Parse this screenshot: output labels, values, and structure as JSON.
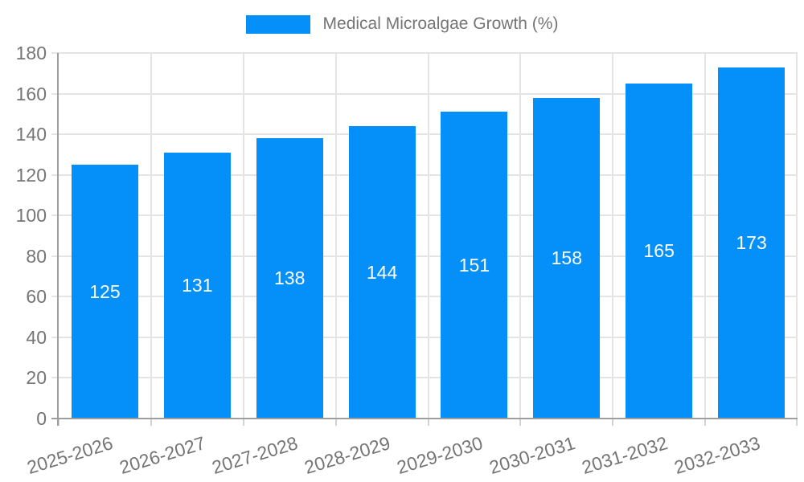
{
  "legend": {
    "label": "Medical Microalgae Growth (%)"
  },
  "chart_data": {
    "type": "bar",
    "title": "",
    "categories": [
      "2025-2026",
      "2026-2027",
      "2027-2028",
      "2028-2029",
      "2029-2030",
      "2030-2031",
      "2031-2032",
      "2032-2033"
    ],
    "series": [
      {
        "name": "Medical Microalgae Growth (%)",
        "values": [
          125,
          131,
          138,
          144,
          151,
          158,
          165,
          173
        ]
      }
    ],
    "xlabel": "",
    "ylabel": "",
    "ylim": [
      0,
      180
    ],
    "ytick_step": 20,
    "yticks": [
      0,
      20,
      40,
      60,
      80,
      100,
      120,
      140,
      160,
      180
    ],
    "grid": true,
    "legend_position": "top-center",
    "value_labels": "inside-center",
    "x_label_rotation_deg": -17
  },
  "colors": {
    "bar": "#0490f8",
    "grid": "#e4e4e4",
    "axis": "#9e9e9e",
    "tick": "#d2d2d2",
    "text": "#757575",
    "value_label": "#ffffff",
    "background": "#ffffff"
  }
}
